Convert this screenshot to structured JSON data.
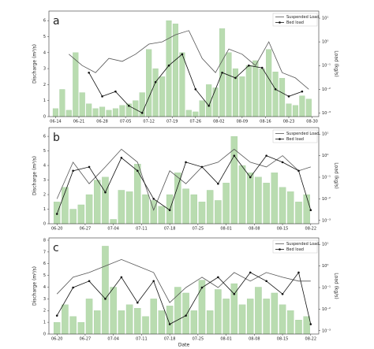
{
  "chart_data": [
    {
      "type": "bar-line",
      "panel": "a",
      "ylabel": "Discharge (m³/s)",
      "y2label": "Load (kg/s)",
      "bar_color": "#b9dcb0",
      "xlim": [
        -2,
        79
      ],
      "xticks": [
        {
          "value": 0,
          "label": "06-14"
        },
        {
          "value": 7,
          "label": "06-21"
        },
        {
          "value": 14,
          "label": "06-28"
        },
        {
          "value": 21,
          "label": "07-05"
        },
        {
          "value": 28,
          "label": "07-12"
        },
        {
          "value": 35,
          "label": "07-19"
        },
        {
          "value": 42,
          "label": "07-26"
        },
        {
          "value": 49,
          "label": "08-02"
        },
        {
          "value": 56,
          "label": "08-09"
        },
        {
          "value": 63,
          "label": "08-16"
        },
        {
          "value": 70,
          "label": "08-23"
        },
        {
          "value": 77,
          "label": "08-30"
        }
      ],
      "ylim": [
        0,
        6.6
      ],
      "yticks": [
        0,
        1,
        2,
        3,
        4,
        5,
        6
      ],
      "y2lim": [
        0.0007,
        20
      ],
      "y2scale": "log",
      "y2ticks": [
        {
          "value": 0.001,
          "label": "10⁻³"
        },
        {
          "value": 0.01,
          "label": "10⁻²"
        },
        {
          "value": 0.1,
          "label": "10⁻¹"
        },
        {
          "value": 1,
          "label": "10⁰"
        },
        {
          "value": 10,
          "label": "10¹"
        }
      ],
      "x": [
        0,
        2,
        4,
        6,
        8,
        10,
        12,
        14,
        16,
        18,
        20,
        22,
        24,
        26,
        28,
        30,
        32,
        34,
        36,
        38,
        40,
        42,
        44,
        46,
        48,
        50,
        52,
        54,
        56,
        58,
        60,
        62,
        64,
        66,
        68,
        70,
        72,
        74,
        76
      ],
      "values": [
        0.5,
        1.7,
        0.4,
        4,
        1.5,
        0.8,
        0.5,
        0.6,
        0.4,
        0.5,
        0.7,
        0.8,
        1,
        1.5,
        4.2,
        3,
        2.5,
        6,
        5.8,
        4,
        0.4,
        0.3,
        1,
        2,
        1.8,
        5.5,
        4,
        3,
        2.5,
        3.2,
        3.5,
        3,
        4.2,
        2.8,
        2.4,
        0.8,
        0.7,
        1.3,
        1.1
      ],
      "series": [
        {
          "name": "Suspended Load",
          "color": "#555555",
          "axis": "y2",
          "x": [
            4,
            8,
            12,
            16,
            20,
            24,
            28,
            32,
            36,
            40,
            44,
            48,
            52,
            56,
            60,
            64,
            68,
            72,
            76
          ],
          "values": [
            0.3,
            0.1,
            0.05,
            0.2,
            0.15,
            0.3,
            0.8,
            1,
            2,
            3,
            0.2,
            0.05,
            0.5,
            0.3,
            0.1,
            1,
            0.05,
            0.03,
            0.01
          ]
        },
        {
          "name": "Bed load",
          "color": "#111111",
          "axis": "y2",
          "markers": true,
          "x": [
            10,
            14,
            18,
            22,
            26,
            30,
            34,
            38,
            42,
            46,
            50,
            54,
            58,
            62,
            66,
            70,
            74
          ],
          "values": [
            0.05,
            0.005,
            0.008,
            0.002,
            0.001,
            0.02,
            0.1,
            0.3,
            0.01,
            0.002,
            0.05,
            0.03,
            0.1,
            0.08,
            0.01,
            0.005,
            0.008
          ]
        }
      ]
    },
    {
      "type": "bar-line",
      "panel": "b",
      "ylabel": "Discharge (m³/s)",
      "y2label": "Load (kg/s)",
      "bar_color": "#b9dcb0",
      "xlim": [
        -2,
        65
      ],
      "xticks": [
        {
          "value": 0,
          "label": "06-20"
        },
        {
          "value": 7,
          "label": "06-27"
        },
        {
          "value": 14,
          "label": "07-04"
        },
        {
          "value": 21,
          "label": "07-11"
        },
        {
          "value": 28,
          "label": "07-18"
        },
        {
          "value": 35,
          "label": "07-25"
        },
        {
          "value": 42,
          "label": "08-01"
        },
        {
          "value": 49,
          "label": "08-08"
        },
        {
          "value": 56,
          "label": "08-15"
        },
        {
          "value": 63,
          "label": "08-22"
        }
      ],
      "ylim": [
        0,
        6.6
      ],
      "yticks": [
        0,
        1,
        2,
        3,
        4,
        5,
        6
      ],
      "y2lim": [
        0.0007,
        20
      ],
      "y2scale": "log",
      "y2ticks": [
        {
          "value": 0.001,
          "label": "10⁻³"
        },
        {
          "value": 0.01,
          "label": "10⁻²"
        },
        {
          "value": 0.1,
          "label": "10⁻¹"
        },
        {
          "value": 1,
          "label": "10⁰"
        },
        {
          "value": 10,
          "label": "10¹"
        }
      ],
      "x": [
        0,
        2,
        4,
        6,
        8,
        10,
        12,
        14,
        16,
        18,
        20,
        22,
        24,
        26,
        28,
        30,
        32,
        34,
        36,
        38,
        40,
        42,
        44,
        46,
        48,
        50,
        52,
        54,
        56,
        58,
        60,
        62
      ],
      "values": [
        1.5,
        2.5,
        1,
        1.3,
        2,
        3,
        3.2,
        0.3,
        2.3,
        2.2,
        4.1,
        2,
        1.6,
        1.2,
        2,
        3.5,
        2.4,
        2,
        1.5,
        2.3,
        1.6,
        2.8,
        6,
        4,
        3.5,
        3.2,
        2.8,
        3.5,
        2.5,
        2.2,
        1.5,
        2
      ],
      "series": [
        {
          "name": "Suspended Load",
          "color": "#555555",
          "axis": "y2",
          "x": [
            0,
            4,
            8,
            12,
            16,
            20,
            24,
            28,
            32,
            36,
            40,
            44,
            48,
            52,
            56,
            60,
            63
          ],
          "values": [
            0.01,
            0.5,
            0.05,
            0.3,
            2,
            0.5,
            0.003,
            0.2,
            0.05,
            0.3,
            0.5,
            2,
            0.5,
            0.3,
            1,
            0.2,
            0.3
          ]
        },
        {
          "name": "Bed load",
          "color": "#111111",
          "axis": "y2",
          "markers": true,
          "x": [
            0,
            4,
            8,
            12,
            16,
            20,
            24,
            28,
            32,
            36,
            40,
            44,
            48,
            52,
            56,
            60,
            63
          ],
          "values": [
            0.002,
            0.2,
            0.3,
            0.02,
            0.8,
            0.2,
            0.01,
            0.003,
            0.5,
            0.3,
            0.05,
            1,
            0.1,
            1,
            0.5,
            0.2,
            0.003
          ]
        }
      ]
    },
    {
      "type": "bar-line",
      "panel": "c",
      "ylabel": "Discharge (m³/s)",
      "y2label": "Load (kg/s)",
      "xlabel": "Date",
      "bar_color": "#b9dcb0",
      "xlim": [
        -2,
        65
      ],
      "xticks": [
        {
          "value": 0,
          "label": "06-20"
        },
        {
          "value": 7,
          "label": "06-27"
        },
        {
          "value": 14,
          "label": "07-04"
        },
        {
          "value": 21,
          "label": "07-11"
        },
        {
          "value": 28,
          "label": "07-18"
        },
        {
          "value": 35,
          "label": "07-25"
        },
        {
          "value": 42,
          "label": "08-01"
        },
        {
          "value": 49,
          "label": "08-08"
        },
        {
          "value": 56,
          "label": "08-15"
        },
        {
          "value": 63,
          "label": "08-22"
        }
      ],
      "ylim": [
        0,
        8.2
      ],
      "yticks": [
        0,
        1,
        2,
        3,
        4,
        5,
        6,
        7,
        8
      ],
      "y2lim": [
        0.0007,
        20
      ],
      "y2scale": "log",
      "y2ticks": [
        {
          "value": 0.001,
          "label": "10⁻³"
        },
        {
          "value": 0.01,
          "label": "10⁻²"
        },
        {
          "value": 0.1,
          "label": "10⁻¹"
        },
        {
          "value": 1,
          "label": "10⁰"
        },
        {
          "value": 10,
          "label": "10¹"
        }
      ],
      "x": [
        0,
        2,
        4,
        6,
        8,
        10,
        12,
        14,
        16,
        18,
        20,
        22,
        24,
        26,
        28,
        30,
        32,
        34,
        36,
        38,
        40,
        42,
        44,
        46,
        48,
        50,
        52,
        54,
        56,
        58,
        60,
        62
      ],
      "values": [
        1,
        2.5,
        1.5,
        1,
        3,
        2,
        7.5,
        4,
        2,
        2.5,
        2.2,
        1.5,
        3,
        2,
        2.4,
        4,
        3.5,
        2,
        4.6,
        2,
        3.8,
        3,
        4.3,
        2.5,
        3,
        4,
        3,
        3.5,
        2.5,
        2,
        1.2,
        1.5
      ],
      "series": [
        {
          "name": "Suspended Load",
          "color": "#555555",
          "axis": "y2",
          "x": [
            0,
            4,
            8,
            12,
            16,
            20,
            24,
            28,
            32,
            36,
            40,
            44,
            48,
            52,
            56,
            60,
            63
          ],
          "values": [
            0.05,
            0.3,
            0.5,
            1,
            2,
            1,
            0.5,
            0.02,
            0.1,
            0.3,
            0.1,
            0.5,
            0.2,
            0.5,
            0.3,
            0.2,
            0.2
          ]
        },
        {
          "name": "Bed load",
          "color": "#111111",
          "axis": "y2",
          "markers": true,
          "x": [
            0,
            4,
            8,
            12,
            16,
            20,
            24,
            28,
            32,
            36,
            40,
            44,
            48,
            52,
            56,
            60,
            63
          ],
          "values": [
            0.005,
            0.1,
            0.2,
            0.03,
            0.3,
            0.02,
            0.2,
            0.002,
            0.005,
            0.1,
            0.3,
            0.05,
            0.5,
            0.2,
            0.05,
            0.5,
            0.002
          ]
        }
      ]
    }
  ]
}
